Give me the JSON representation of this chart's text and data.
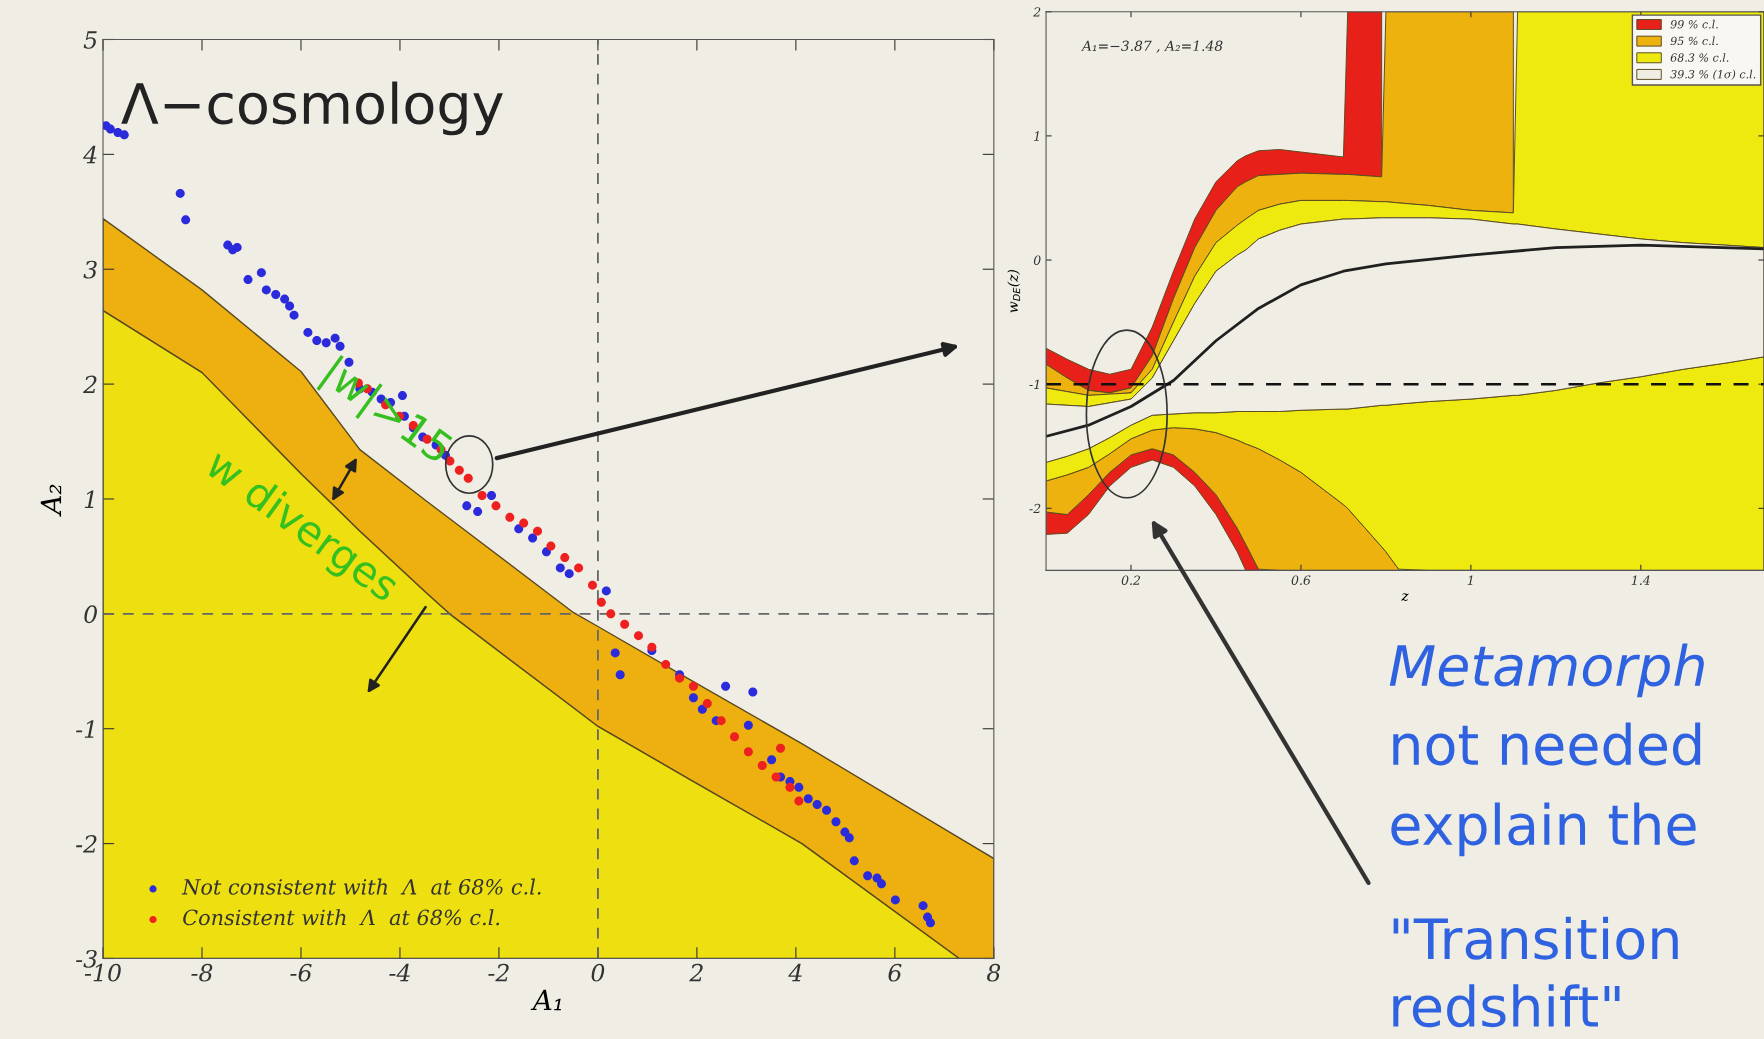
{
  "chart_data": [
    {
      "type": "scatter",
      "title": "Λ−cosmology",
      "xlabel": "A₁",
      "ylabel": "A₂",
      "xlim": [
        -10,
        8
      ],
      "ylim": [
        -3,
        5
      ],
      "xticks": [
        -10,
        -8,
        -6,
        -4,
        -2,
        0,
        2,
        4,
        6,
        8
      ],
      "yticks": [
        -3,
        -2,
        -1,
        0,
        1,
        2,
        3,
        4,
        5
      ],
      "legend": "bottom left",
      "ref_lines": [
        {
          "axis": "x",
          "value": 0,
          "line_style": "dashed",
          "color": "#666666"
        },
        {
          "axis": "y",
          "value": 0,
          "line_style": "dashed",
          "color": "#666666"
        }
      ],
      "annotations": [
        "|w|>15",
        "w diverges"
      ],
      "series": [
        {
          "type": "area",
          "color": "#eeb010",
          "x": [
            -10,
            -8,
            -6,
            -4.81,
            -3.46,
            -3.0,
            -0.49,
            0,
            1.85,
            4.12,
            7.3,
            8
          ],
          "values": [
            null,
            null,
            null,
            null,
            null,
            null,
            null,
            null,
            null,
            null,
            null,
            null
          ],
          "upper": [
            3.44,
            2.82,
            2.11,
            1.43,
            0.98,
            0.83,
            0.01,
            -0.11,
            -0.57,
            -1.13,
            -1.95,
            -2.13
          ],
          "lower": [
            2.64,
            2.1,
            1.22,
            0.72,
            0.18,
            0.0,
            -0.82,
            -0.98,
            -1.44,
            -2.0,
            -3.0,
            -3.0
          ]
        },
        {
          "type": "area",
          "color": "#eee010",
          "x": [
            -10,
            -8,
            -6,
            -4.81,
            -3.46,
            -3.0,
            -0.49,
            0,
            1.85,
            4.12,
            7.3
          ],
          "values": [
            null,
            null,
            null,
            null,
            null,
            null,
            null,
            null,
            null,
            null,
            null
          ],
          "upper": [
            2.64,
            2.1,
            1.22,
            0.72,
            0.18,
            0.0,
            -0.82,
            -0.98,
            -1.44,
            -2.0,
            -3.0
          ],
          "lower": [
            -3,
            -3,
            -3,
            -3,
            -3,
            -3,
            -3,
            -3,
            -3,
            -3,
            -3
          ]
        },
        {
          "type": "scatter",
          "name": "Not consistent with  Λ  at 68% c.l.",
          "color": "#2b2bdc",
          "marker": "circle",
          "x": [
            -9.94,
            -9.85,
            -9.7,
            -9.57,
            -8.44,
            -8.33,
            -7.48,
            -7.38,
            -7.29,
            -7.07,
            -6.8,
            -6.7,
            -6.51,
            -6.33,
            -6.23,
            -6.14,
            -5.86,
            -5.68,
            -5.49,
            -5.31,
            -5.21,
            -5.03,
            -4.81,
            -4.56,
            -4.38,
            -4.19,
            -3.95,
            -3.91,
            -3.73,
            -3.54,
            -3.27,
            -3.08,
            -2.65,
            -2.43,
            -2.15,
            -1.6,
            -1.32,
            -1.04,
            -0.76,
            -0.58,
            0.17,
            0.35,
            0.45,
            1.09,
            1.65,
            1.93,
            2.11,
            2.39,
            2.58,
            3.04,
            3.13,
            3.51,
            3.69,
            3.88,
            4.06,
            4.25,
            4.43,
            4.62,
            4.81,
            4.99,
            5.08,
            5.18,
            5.45,
            5.64,
            5.73,
            6.01,
            6.57,
            6.66,
            6.72
          ],
          "values": [
            4.25,
            4.22,
            4.19,
            4.17,
            3.66,
            3.43,
            3.21,
            3.17,
            3.19,
            2.91,
            2.97,
            2.82,
            2.78,
            2.74,
            2.68,
            2.6,
            2.45,
            2.38,
            2.36,
            2.4,
            2.33,
            2.19,
            1.96,
            1.93,
            1.87,
            1.84,
            1.9,
            1.72,
            1.62,
            1.54,
            1.47,
            1.38,
            0.94,
            0.89,
            1.03,
            0.74,
            0.66,
            0.54,
            0.4,
            0.35,
            0.2,
            -0.34,
            -0.53,
            -0.32,
            -0.53,
            -0.73,
            -0.83,
            -0.93,
            -0.63,
            -0.97,
            -0.68,
            -1.27,
            -1.42,
            -1.46,
            -1.51,
            -1.61,
            -1.66,
            -1.71,
            -1.81,
            -1.9,
            -1.95,
            -2.15,
            -2.28,
            -2.3,
            -2.35,
            -2.49,
            -2.54,
            -2.64,
            -2.69
          ]
        },
        {
          "type": "scatter",
          "name": "Consistent with  Λ  at 68% c.l.",
          "color": "#ee2020",
          "marker": "circle",
          "x": [
            -4.84,
            -4.66,
            -4.29,
            -4.01,
            -3.73,
            -3.45,
            -3.17,
            -2.99,
            -2.8,
            -2.62,
            -2.34,
            -2.06,
            -1.78,
            -1.5,
            -1.22,
            -0.95,
            -0.67,
            -0.39,
            -0.11,
            0.07,
            0.26,
            0.54,
            0.82,
            1.09,
            1.37,
            1.65,
            1.93,
            2.21,
            2.49,
            2.76,
            3.04,
            3.32,
            3.6,
            3.69,
            3.88,
            4.06
          ],
          "values": [
            2.01,
            1.96,
            1.82,
            1.72,
            1.64,
            1.52,
            1.43,
            1.33,
            1.25,
            1.18,
            1.03,
            0.94,
            0.84,
            0.79,
            0.72,
            0.59,
            0.49,
            0.4,
            0.25,
            0.1,
            0.0,
            -0.09,
            -0.19,
            -0.29,
            -0.44,
            -0.56,
            -0.63,
            -0.78,
            -0.93,
            -1.07,
            -1.2,
            -1.32,
            -1.42,
            -1.17,
            -1.51,
            -1.63
          ]
        }
      ]
    },
    {
      "type": "area",
      "xlabel": "z",
      "ylabel": "w$_{DE}$(z)",
      "xlim": [
        0,
        1.69
      ],
      "ylim": [
        -2.5,
        2
      ],
      "xticks": [
        0.2,
        0.6,
        1,
        1.4
      ],
      "yticks": [
        -2,
        -1,
        0,
        1,
        2
      ],
      "legend": "top right",
      "ref_lines": [
        {
          "axis": "y",
          "value": -1,
          "line_style": "dashed",
          "color": "#111111"
        }
      ],
      "annotations": [
        "A₁=−3.87 , A₂=1.48",
        "Metamorph",
        "not needed",
        "explain the",
        "\"Transition",
        "redshift\""
      ],
      "series": [
        {
          "name": "99 % c.l.",
          "color": "#e8201a",
          "x": [
            0,
            0.05,
            0.1,
            0.15,
            0.2,
            0.25,
            0.3,
            0.35,
            0.4,
            0.45,
            0.47,
            0.5,
            0.55,
            0.6,
            0.7,
            0.71,
            0.79
          ],
          "values": [
            null,
            null,
            null,
            null,
            null,
            null,
            null,
            null,
            null,
            null,
            null,
            null,
            null,
            null,
            null,
            null,
            null
          ],
          "upper": [
            -0.71,
            -0.8,
            -0.88,
            -0.92,
            -0.88,
            -0.54,
            -0.09,
            0.33,
            0.63,
            0.8,
            0.84,
            0.88,
            0.89,
            0.87,
            0.83,
            2,
            2
          ],
          "lower": [
            -0.84,
            -0.95,
            -1.05,
            -1.07,
            -1.03,
            -0.77,
            -0.31,
            0.1,
            0.4,
            0.59,
            0.63,
            0.68,
            0.69,
            0.7,
            0.69,
            0.69,
            0.67
          ]
        },
        {
          "color": "#e8201a",
          "x": [
            0,
            0.05,
            0.1,
            0.15,
            0.2,
            0.25,
            0.3,
            0.35,
            0.4,
            0.45,
            0.47,
            0.5
          ],
          "values": [
            null,
            null,
            null,
            null,
            null,
            null,
            null,
            null,
            null,
            null,
            null,
            null
          ],
          "upper": [
            -2.03,
            -2.05,
            -1.89,
            -1.71,
            -1.57,
            -1.52,
            -1.57,
            -1.71,
            -1.89,
            -2.16,
            -2.29,
            -2.49
          ],
          "lower": [
            -2.21,
            -2.2,
            -2.05,
            -1.82,
            -1.67,
            -1.61,
            -1.67,
            -1.82,
            -2.05,
            -2.35,
            -2.5,
            -2.5
          ]
        },
        {
          "name": "95 % c.l.",
          "color": "#eeb20f",
          "x": [
            0,
            0.05,
            0.1,
            0.15,
            0.2,
            0.25,
            0.3,
            0.35,
            0.4,
            0.45,
            0.47,
            0.5,
            0.55,
            0.6,
            0.7,
            0.71,
            0.79,
            0.8,
            0.83,
            0.9,
            1.0,
            1.1
          ],
          "values": [
            null,
            null,
            null,
            null,
            null,
            null,
            null,
            null,
            null,
            null,
            null,
            null,
            null,
            null,
            null,
            null,
            null,
            null,
            null,
            null,
            null,
            null
          ],
          "upper": [
            -0.84,
            -0.95,
            -1.05,
            -1.07,
            -1.03,
            -0.77,
            -0.31,
            0.1,
            0.4,
            0.59,
            0.63,
            0.68,
            0.69,
            0.7,
            0.69,
            0.69,
            0.67,
            2,
            2,
            2,
            2,
            2
          ],
          "lower": [
            -1.03,
            -1.06,
            -1.09,
            -1.08,
            -1.07,
            -0.88,
            -0.5,
            -0.13,
            0.14,
            0.28,
            0.33,
            0.4,
            0.45,
            0.48,
            0.48,
            0.48,
            0.47,
            0.47,
            0.46,
            0.44,
            0.4,
            0.38
          ]
        },
        {
          "color": "#eeb20f",
          "x": [
            0,
            0.05,
            0.1,
            0.15,
            0.2,
            0.25,
            0.3,
            0.35,
            0.4,
            0.45,
            0.47,
            0.5,
            0.55,
            0.6,
            0.7,
            0.71,
            0.79,
            0.8,
            0.83
          ],
          "values": [
            null,
            null,
            null,
            null,
            null,
            null,
            null,
            null,
            null,
            null,
            null,
            null,
            null,
            null,
            null,
            null,
            null,
            null,
            null
          ],
          "upper": [
            -1.78,
            -1.73,
            -1.67,
            -1.56,
            -1.44,
            -1.37,
            -1.35,
            -1.36,
            -1.39,
            -1.45,
            -1.48,
            -1.52,
            -1.61,
            -1.71,
            -1.97,
            -2.0,
            -2.31,
            -2.35,
            -2.49
          ],
          "lower": [
            -2.03,
            -2.05,
            -1.89,
            -1.71,
            -1.57,
            -1.52,
            -1.57,
            -1.71,
            -1.89,
            -2.16,
            -2.29,
            -2.49,
            -2.5,
            -2.5,
            -2.5,
            -2.5,
            -2.5,
            -2.5,
            -2.5
          ]
        },
        {
          "name": "68.3 % c.l.",
          "color": "#eeea10",
          "x": [
            0,
            0.05,
            0.1,
            0.15,
            0.2,
            0.25,
            0.3,
            0.35,
            0.4,
            0.45,
            0.47,
            0.5,
            0.55,
            0.6,
            0.7,
            0.71,
            0.79,
            0.8,
            0.83,
            0.9,
            1.0,
            1.1,
            1.11,
            1.2,
            1.3,
            1.4,
            1.5,
            1.6,
            1.69
          ],
          "values": [
            null,
            null,
            null,
            null,
            null,
            null,
            null,
            null,
            null,
            null,
            null,
            null,
            null,
            null,
            null,
            null,
            null,
            null,
            null,
            null,
            null,
            null,
            null,
            null,
            null,
            null,
            null,
            null,
            null
          ],
          "upper": [
            -1.03,
            -1.06,
            -1.09,
            -1.08,
            -1.07,
            -0.88,
            -0.5,
            -0.13,
            0.14,
            0.28,
            0.33,
            0.4,
            0.45,
            0.48,
            0.48,
            0.48,
            0.47,
            0.47,
            0.46,
            0.44,
            0.4,
            0.38,
            2,
            2,
            2,
            2,
            2,
            2,
            2
          ],
          "lower": [
            -1.16,
            -1.17,
            -1.18,
            -1.15,
            -1.12,
            -0.95,
            -0.65,
            -0.35,
            -0.09,
            0.04,
            0.08,
            0.17,
            0.24,
            0.29,
            0.33,
            0.33,
            0.34,
            0.34,
            0.34,
            0.34,
            0.33,
            0.29,
            0.29,
            0.25,
            0.21,
            0.17,
            0.14,
            0.12,
            0.1
          ]
        },
        {
          "color": "#eeea10",
          "x": [
            0,
            0.05,
            0.1,
            0.15,
            0.2,
            0.25,
            0.3,
            0.35,
            0.4,
            0.45,
            0.47,
            0.5,
            0.55,
            0.6,
            0.7,
            0.71,
            0.79,
            0.8,
            0.83,
            0.9,
            1.0,
            1.1,
            1.11,
            1.2,
            1.3,
            1.4,
            1.5,
            1.6,
            1.69
          ],
          "values": [
            null,
            null,
            null,
            null,
            null,
            null,
            null,
            null,
            null,
            null,
            null,
            null,
            null,
            null,
            null,
            null,
            null,
            null,
            null,
            null,
            null,
            null,
            null,
            null,
            null,
            null,
            null,
            null,
            null
          ],
          "upper": [
            -1.63,
            -1.58,
            -1.52,
            -1.43,
            -1.33,
            -1.25,
            -1.24,
            -1.23,
            -1.23,
            -1.22,
            -1.22,
            -1.22,
            -1.22,
            -1.21,
            -1.2,
            -1.2,
            -1.17,
            -1.17,
            -1.16,
            -1.14,
            -1.12,
            -1.09,
            -1.09,
            -1.05,
            -0.99,
            -0.94,
            -0.88,
            -0.83,
            -0.78
          ],
          "lower": [
            -1.78,
            -1.73,
            -1.67,
            -1.56,
            -1.44,
            -1.37,
            -1.35,
            -1.36,
            -1.39,
            -1.45,
            -1.48,
            -1.52,
            -1.61,
            -1.71,
            -1.97,
            -2.0,
            -2.31,
            -2.35,
            -2.49,
            -2.5,
            -2.5,
            -2.5,
            -2.5,
            -2.5,
            -2.5,
            -2.5,
            -2.5,
            -2.5,
            -2.5
          ]
        },
        {
          "name": "39.3 % (1σ) c.l.",
          "color": "#efede4",
          "x": [
            0,
            0.05,
            0.1,
            0.15,
            0.2,
            0.25,
            0.3,
            0.35,
            0.4,
            0.45,
            0.47,
            0.5,
            0.55,
            0.6,
            0.7,
            0.71,
            0.79,
            0.8,
            0.83,
            0.9,
            1.0,
            1.1,
            1.11,
            1.2,
            1.3,
            1.4,
            1.5,
            1.6,
            1.69
          ],
          "values": [
            null,
            null,
            null,
            null,
            null,
            null,
            null,
            null,
            null,
            null,
            null,
            null,
            null,
            null,
            null,
            null,
            null,
            null,
            null,
            null,
            null,
            null,
            null,
            null,
            null,
            null,
            null,
            null,
            null
          ],
          "upper": [
            -1.16,
            -1.17,
            -1.18,
            -1.15,
            -1.12,
            -0.95,
            -0.65,
            -0.35,
            -0.09,
            0.04,
            0.08,
            0.17,
            0.24,
            0.29,
            0.33,
            0.33,
            0.34,
            0.34,
            0.34,
            0.34,
            0.33,
            0.29,
            0.29,
            0.25,
            0.21,
            0.17,
            0.14,
            0.12,
            0.1
          ],
          "lower": [
            -1.63,
            -1.58,
            -1.52,
            -1.43,
            -1.33,
            -1.25,
            -1.24,
            -1.23,
            -1.23,
            -1.22,
            -1.22,
            -1.22,
            -1.22,
            -1.21,
            -1.2,
            -1.2,
            -1.17,
            -1.17,
            -1.16,
            -1.14,
            -1.12,
            -1.09,
            -1.09,
            -1.05,
            -0.99,
            -0.94,
            -0.88,
            -0.83,
            -0.78
          ]
        },
        {
          "type": "line",
          "color": "#202020",
          "x": [
            0,
            0.1,
            0.2,
            0.3,
            0.4,
            0.5,
            0.6,
            0.7,
            0.8,
            1.0,
            1.2,
            1.4,
            1.69
          ],
          "values": [
            -1.42,
            -1.33,
            -1.18,
            -0.97,
            -0.65,
            -0.39,
            -0.2,
            -0.09,
            -0.03,
            0.04,
            0.1,
            0.12,
            0.09
          ]
        }
      ]
    }
  ]
}
